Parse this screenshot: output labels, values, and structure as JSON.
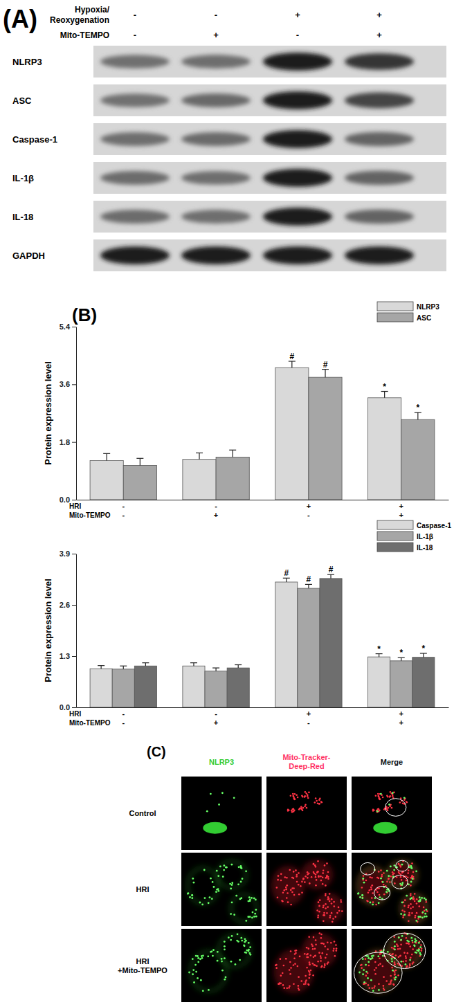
{
  "panel_a": {
    "label": "(A)",
    "conditions": [
      {
        "name": [
          "Hypoxia/",
          "Reoxygenation"
        ],
        "values": [
          "-",
          "-",
          "+",
          "+"
        ]
      },
      {
        "name": [
          "Mito-TEMPO"
        ],
        "values": [
          "-",
          "+",
          "-",
          "+"
        ]
      }
    ],
    "rows": [
      "NLRP3",
      "ASC",
      "Caspase-1",
      "IL-1β",
      "IL-18",
      "GAPDH"
    ]
  },
  "chart_data": [
    {
      "type": "bar",
      "title": "(B)",
      "y_label": "Protein expression level",
      "categories": [
        null,
        null,
        null,
        null
      ],
      "conditions": [
        {
          "name": "HRI",
          "values": [
            "-",
            "-",
            "+",
            "+"
          ]
        },
        {
          "name": "Mito-TEMPO",
          "values": [
            "-",
            "+",
            "-",
            "+"
          ]
        }
      ],
      "series": [
        {
          "name": "NLRP3",
          "color": "#d9d9d9",
          "values": [
            1.22,
            1.26,
            4.12,
            3.18
          ],
          "errors": [
            0.22,
            0.2,
            0.2,
            0.2
          ],
          "annotations": [
            null,
            null,
            "#",
            "*"
          ]
        },
        {
          "name": "ASC",
          "color": "#a6a6a6",
          "values": [
            1.07,
            1.33,
            3.82,
            2.5
          ],
          "errors": [
            0.22,
            0.22,
            0.25,
            0.22
          ],
          "annotations": [
            null,
            null,
            "#",
            "*"
          ]
        }
      ],
      "ylim": [
        0,
        5.4
      ],
      "yticks": [
        {
          "value": 0,
          "label": "0.0"
        },
        1.8,
        3.6,
        5.4
      ],
      "legend": "top-right",
      "tick_labels": "y"
    },
    {
      "type": "bar",
      "y_label": "Protein expression level",
      "categories": [
        null,
        null,
        null,
        null
      ],
      "conditions": [
        {
          "name": "HRI",
          "values": [
            "-",
            "-",
            "+",
            "+"
          ]
        },
        {
          "name": "Mito-TEMPO",
          "values": [
            "-",
            "+",
            "-",
            "+"
          ]
        }
      ],
      "series": [
        {
          "name": "Caspase-1",
          "color": "#d9d9d9",
          "values": [
            0.98,
            1.05,
            3.18,
            1.28
          ],
          "errors": [
            0.08,
            0.08,
            0.1,
            0.08
          ],
          "annotations": [
            null,
            null,
            "#",
            "*"
          ]
        },
        {
          "name": "IL-1β",
          "color": "#a6a6a6",
          "values": [
            0.97,
            0.92,
            3.02,
            1.18
          ],
          "errors": [
            0.08,
            0.08,
            0.1,
            0.08
          ],
          "annotations": [
            null,
            null,
            "#",
            "*"
          ]
        },
        {
          "name": "IL-18",
          "color": "#6e6e6e",
          "values": [
            1.05,
            1.0,
            3.27,
            1.27
          ],
          "errors": [
            0.08,
            0.08,
            0.1,
            0.1
          ],
          "annotations": [
            null,
            null,
            "#",
            "*"
          ]
        }
      ],
      "ylim": [
        0,
        3.9
      ],
      "yticks": [
        {
          "value": 0,
          "label": "0.0"
        },
        1.3,
        2.6,
        3.9
      ],
      "legend": "top-right",
      "tick_labels": "y"
    }
  ],
  "panel_c": {
    "label": "(C)",
    "columns": [
      [
        "NLRP3"
      ],
      [
        "Mito-Tracker-",
        "Deep-Red"
      ],
      [
        "Merge"
      ]
    ],
    "rows": [
      [
        "Control"
      ],
      [
        "HRI"
      ],
      [
        "HRI",
        "+Mito-TEMPO"
      ]
    ]
  }
}
